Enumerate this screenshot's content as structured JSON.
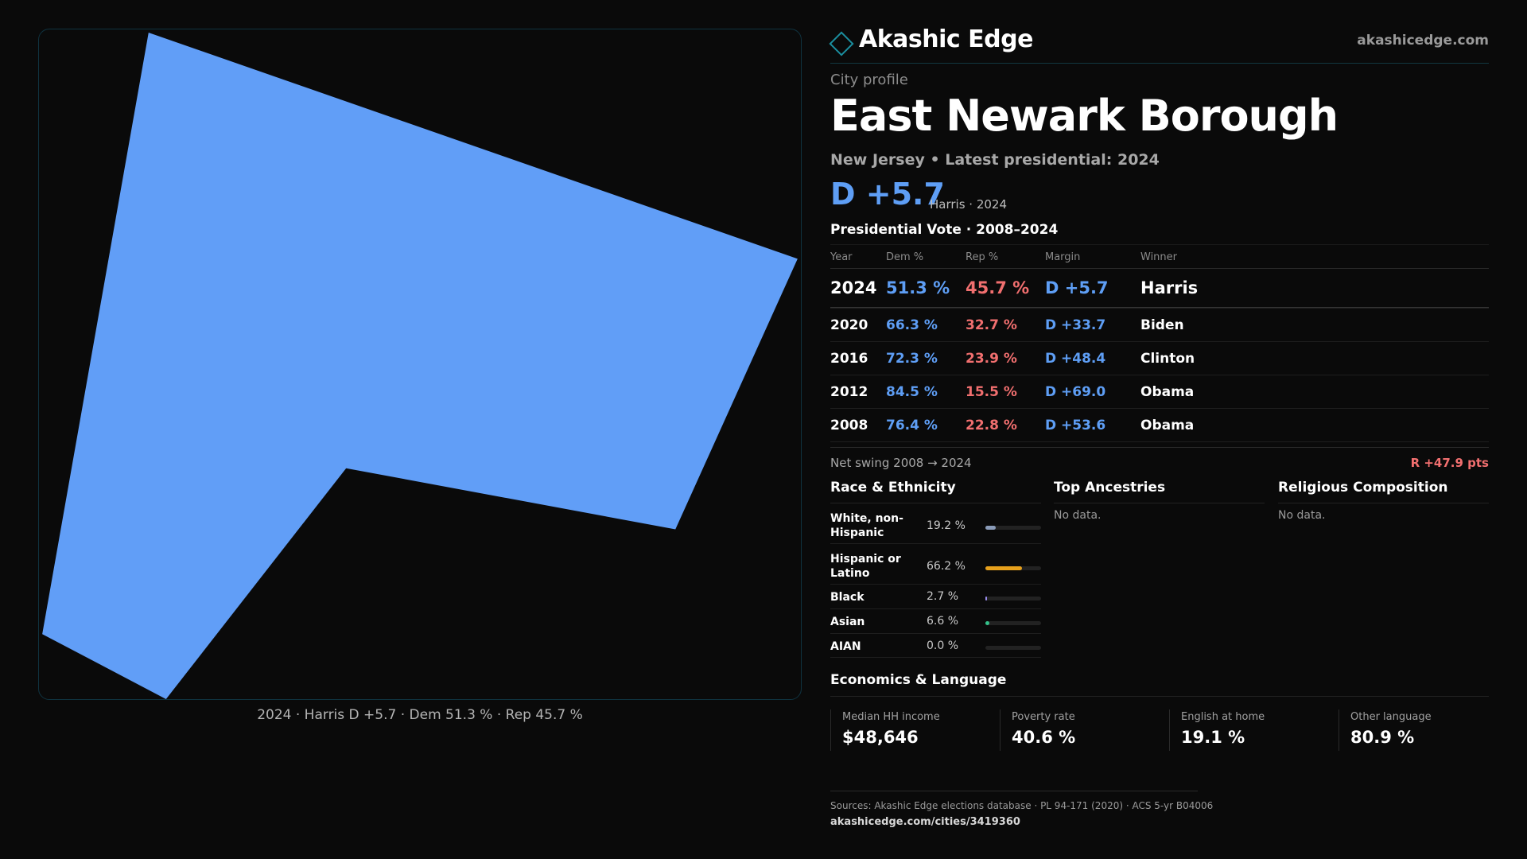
{
  "map": {
    "fill_color": "#619ef7",
    "caption": "2024 · Harris D +5.7 · Dem 51.3 % · Rep 45.7 %"
  },
  "brand": {
    "name": "Akashic Edge",
    "url": "akashicedge.com",
    "accent": "#1b8fa0"
  },
  "header": {
    "kicker": "City profile",
    "title": "East Newark Borough",
    "subtitle": "New Jersey • Latest presidential: 2024",
    "margin": "D +5.7",
    "margin_detail": "Harris · 2024"
  },
  "presidential": {
    "title": "Presidential Vote · 2008–2024",
    "columns": [
      "Year",
      "Dem %",
      "Rep %",
      "Margin",
      "Winner"
    ],
    "rows": [
      {
        "year": "2024",
        "dem": "51.3 %",
        "rep": "45.7 %",
        "margin": "D +5.7",
        "winner": "Harris"
      },
      {
        "year": "2020",
        "dem": "66.3 %",
        "rep": "32.7 %",
        "margin": "D +33.7",
        "winner": "Biden"
      },
      {
        "year": "2016",
        "dem": "72.3 %",
        "rep": "23.9 %",
        "margin": "D +48.4",
        "winner": "Clinton"
      },
      {
        "year": "2012",
        "dem": "84.5 %",
        "rep": "15.5 %",
        "margin": "D +69.0",
        "winner": "Obama"
      },
      {
        "year": "2008",
        "dem": "76.4 %",
        "rep": "22.8 %",
        "margin": "D +53.6",
        "winner": "Obama"
      }
    ],
    "swing_label": "Net swing 2008 → 2024",
    "swing_value": "R +47.9 pts"
  },
  "race": {
    "title": "Race & Ethnicity",
    "rows": [
      {
        "label": "White, non-Hispanic",
        "pct": "19.2 %",
        "value": 19.2,
        "color": "#8a9bb8"
      },
      {
        "label": "Hispanic or Latino",
        "pct": "66.2 %",
        "value": 66.2,
        "color": "#e6a01c"
      },
      {
        "label": "Black",
        "pct": "2.7 %",
        "value": 2.7,
        "color": "#9b8ef0"
      },
      {
        "label": "Asian",
        "pct": "6.6 %",
        "value": 6.6,
        "color": "#33c28a"
      },
      {
        "label": "AIAN",
        "pct": "0.0 %",
        "value": 0.0,
        "color": "#bbbbbb"
      }
    ]
  },
  "ancestries": {
    "title": "Top Ancestries",
    "empty": "No data."
  },
  "religion": {
    "title": "Religious Composition",
    "empty": "No data."
  },
  "economics": {
    "title": "Economics & Language",
    "cards": [
      {
        "label": "Median HH income",
        "value": "$48,646"
      },
      {
        "label": "Poverty rate",
        "value": "40.6 %"
      },
      {
        "label": "English at home",
        "value": "19.1 %"
      },
      {
        "label": "Other language",
        "value": "80.9 %"
      }
    ]
  },
  "footer": {
    "sources": "Sources: Akashic Edge elections database · PL 94-171 (2020) · ACS 5-yr B04006",
    "url": "akashicedge.com/cities/3419360"
  }
}
